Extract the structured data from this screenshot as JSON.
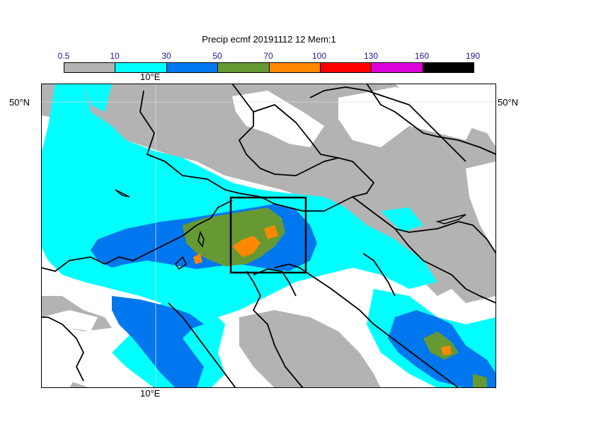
{
  "title": "Precip ecmf 20191112 12 Mem:1",
  "legend": {
    "ticks": [
      "0.5",
      "10",
      "30",
      "50",
      "70",
      "100",
      "130",
      "160",
      "190"
    ],
    "colors": [
      "#b3b3b3",
      "#00ffff",
      "#0077ee",
      "#669933",
      "#ff8800",
      "#ff0000",
      "#dd00dd",
      "#000000"
    ]
  },
  "axes": {
    "lon_top": "10°E",
    "lon_bottom": "10°E",
    "lat_left": "50°N",
    "lat_right": "50°N"
  },
  "colors": {
    "low": "#b3b3b3",
    "light": "#00ffff",
    "medium": "#0077ee",
    "heavy": "#669933",
    "very_heavy": "#ff8800",
    "coast": "#000000",
    "grid": "#dddddd"
  }
}
